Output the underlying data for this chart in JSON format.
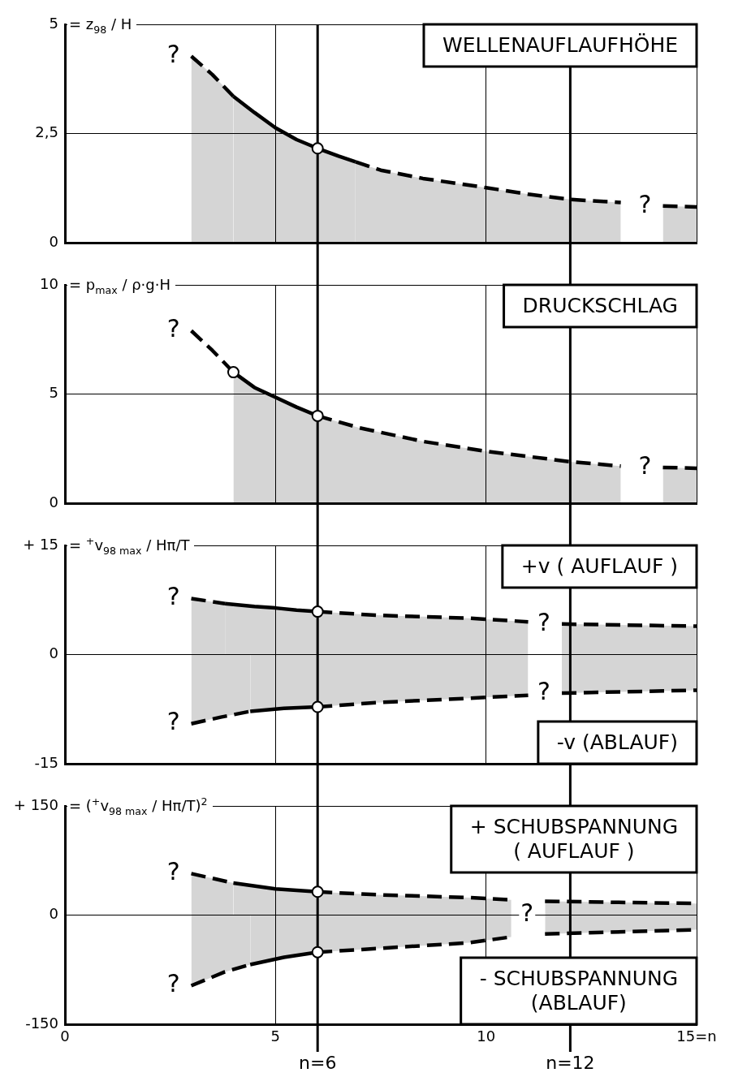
{
  "chart_data": [
    {
      "type": "area",
      "title": "WELLENAUFLAUFHÖHE",
      "ylabel": "= z$_{98}$ / H",
      "xlim": [
        0,
        15
      ],
      "xticks": [
        0,
        5,
        10,
        15
      ],
      "ylim": [
        0,
        5
      ],
      "yticks": [
        0,
        {
          "value": 2.5,
          "label": "2,5"
        },
        5
      ],
      "grid": true,
      "tick_labels": "y",
      "series": [
        {
          "color": "#000000",
          "line_style": "dashed",
          "x": [
            3,
            3.5,
            4
          ],
          "values": [
            4.27,
            3.85,
            3.35
          ]
        },
        {
          "color": "#000000",
          "line_style": "solid",
          "x": [
            4,
            4.5,
            5,
            5.5,
            6,
            6.5,
            6.9
          ],
          "values": [
            3.35,
            2.98,
            2.63,
            2.36,
            2.16,
            1.98,
            1.85
          ]
        },
        {
          "color": "#000000",
          "line_style": "dashed",
          "x": [
            6.9,
            7.5,
            8.5,
            10,
            11,
            12,
            13.2
          ],
          "values": [
            1.85,
            1.66,
            1.47,
            1.26,
            1.11,
            0.99,
            0.92
          ]
        },
        {
          "color": "#000000",
          "line_style": "dashed",
          "x": [
            14.2,
            15
          ],
          "values": [
            0.84,
            0.82
          ]
        },
        {
          "type": "scatter",
          "color": "#000000",
          "marker": "circle",
          "x": [
            6
          ],
          "values": [
            2.16
          ]
        }
      ],
      "annotations": [
        {
          "text": "?",
          "x": 3,
          "y": 4.27
        },
        {
          "text": "?",
          "x": 14.2,
          "y": 0.84
        }
      ],
      "ref_lines": [
        {
          "axis": "x",
          "value": 6
        },
        {
          "axis": "x",
          "value": 12
        }
      ]
    },
    {
      "type": "area",
      "title": "DRUCKSCHLAG",
      "ylabel": "= p$_{max}$ / ρ·g·H",
      "xlim": [
        0,
        15
      ],
      "xticks": [
        0,
        5,
        10,
        15
      ],
      "ylim": [
        0,
        10
      ],
      "yticks": [
        0,
        5,
        10
      ],
      "grid": true,
      "tick_labels": "y",
      "series": [
        {
          "type": "line",
          "color": "#000000",
          "line_style": "dashed",
          "x": [
            3,
            3.5,
            4
          ],
          "values": [
            7.9,
            7.0,
            6.0
          ]
        },
        {
          "color": "#000000",
          "line_style": "solid",
          "x": [
            4,
            4.5,
            5,
            5.5,
            6
          ],
          "values": [
            6.0,
            5.3,
            4.85,
            4.4,
            4.0
          ]
        },
        {
          "color": "#000000",
          "line_style": "dashed",
          "x": [
            6,
            7,
            8.5,
            10,
            12,
            13.2
          ],
          "values": [
            4.0,
            3.45,
            2.83,
            2.38,
            1.9,
            1.7
          ]
        },
        {
          "color": "#000000",
          "line_style": "dashed",
          "x": [
            14.2,
            15
          ],
          "values": [
            1.64,
            1.6
          ]
        },
        {
          "type": "scatter",
          "color": "#000000",
          "marker": "circle",
          "x": [
            4,
            6
          ],
          "values": [
            6.0,
            4.0
          ]
        }
      ],
      "annotations": [
        {
          "text": "?",
          "x": 3,
          "y": 7.9
        },
        {
          "text": "?",
          "x": 14.2,
          "y": 1.64
        }
      ],
      "ref_lines": [
        {
          "axis": "x",
          "value": 6
        },
        {
          "axis": "x",
          "value": 12
        }
      ]
    },
    {
      "type": "area",
      "ylabel": "= $^{+}$v$_{98 max}$ / Hπ/T",
      "xlim": [
        0,
        15
      ],
      "xticks": [
        0,
        5,
        10,
        15
      ],
      "ylim": [
        -15,
        15
      ],
      "yticks": [
        -15,
        0,
        {
          "value": 15,
          "label": "+ 15"
        }
      ],
      "grid": true,
      "tick_labels": "y",
      "series": [
        {
          "color": "#000000",
          "line_style": "dashed",
          "x": [
            3,
            3.8
          ],
          "values": [
            7.7,
            7.0
          ]
        },
        {
          "color": "#000000",
          "line_style": "solid",
          "x": [
            3.8,
            4.5,
            5,
            5.5,
            6
          ],
          "values": [
            7.0,
            6.6,
            6.4,
            6.1,
            5.9
          ]
        },
        {
          "color": "#000000",
          "line_style": "dashed",
          "x": [
            6,
            7.4,
            8.5,
            9.6,
            11
          ],
          "values": [
            5.9,
            5.4,
            5.2,
            5.0,
            4.5
          ]
        },
        {
          "color": "#000000",
          "line_style": "dashed",
          "x": [
            11.8,
            15
          ],
          "values": [
            4.2,
            3.9
          ]
        },
        {
          "color": "#000000",
          "line_style": "dashed",
          "x": [
            3,
            3.7,
            4.4
          ],
          "values": [
            -9.5,
            -8.6,
            -7.8
          ]
        },
        {
          "color": "#000000",
          "line_style": "solid",
          "x": [
            4.4,
            5.2,
            6
          ],
          "values": [
            -7.8,
            -7.4,
            -7.2
          ]
        },
        {
          "color": "#000000",
          "line_style": "dashed",
          "x": [
            6,
            7.4,
            8.5,
            9.6,
            11
          ],
          "values": [
            -7.2,
            -6.6,
            -6.3,
            -6.0,
            -5.6
          ]
        },
        {
          "color": "#000000",
          "line_style": "dashed",
          "x": [
            11.8,
            15
          ],
          "values": [
            -5.3,
            -4.9
          ]
        },
        {
          "type": "scatter",
          "color": "#000000",
          "marker": "circle",
          "x": [
            6,
            6
          ],
          "values": [
            5.9,
            -7.2
          ]
        }
      ],
      "annotations": [
        "+v ( AUFLAUF )",
        "-v (ABLAUF)",
        {
          "text": "?",
          "x": 3,
          "y": 7.7
        },
        {
          "text": "?",
          "x": 3,
          "y": -9.5
        },
        {
          "text": "?",
          "x": 11.8,
          "y": 4.2
        },
        {
          "text": "?",
          "x": 11.8,
          "y": -5.3
        }
      ],
      "ref_lines": [
        {
          "axis": "x",
          "value": 6
        },
        {
          "axis": "x",
          "value": 12
        }
      ]
    },
    {
      "type": "area",
      "ylabel": "= ($^{+}$v$_{98 max}$ / Hπ/T)$^{2}$",
      "xlim": [
        0,
        15
      ],
      "xticks": [
        0,
        5,
        10,
        {
          "value": 15,
          "label": "15=n"
        }
      ],
      "ylim": [
        -150,
        150
      ],
      "yticks": [
        -150,
        0,
        {
          "value": 150,
          "label": "+ 150"
        }
      ],
      "grid": true,
      "series": [
        {
          "color": "#000000",
          "line_style": "dashed",
          "x": [
            3,
            4
          ],
          "values": [
            57,
            44
          ]
        },
        {
          "color": "#000000",
          "line_style": "solid",
          "x": [
            4,
            5,
            6
          ],
          "values": [
            44,
            36,
            32
          ]
        },
        {
          "color": "#000000",
          "line_style": "dashed",
          "x": [
            6,
            7.4,
            9.6,
            10.6
          ],
          "values": [
            32,
            28,
            24,
            21
          ]
        },
        {
          "color": "#000000",
          "line_style": "dashed",
          "x": [
            11.4,
            15
          ],
          "values": [
            19,
            16
          ]
        },
        {
          "color": "#000000",
          "line_style": "dashed",
          "x": [
            3,
            3.8,
            4.4
          ],
          "values": [
            -97,
            -78,
            -68
          ]
        },
        {
          "color": "#000000",
          "line_style": "solid",
          "x": [
            4.4,
            5.2,
            6
          ],
          "values": [
            -68,
            -58,
            -51
          ]
        },
        {
          "color": "#000000",
          "line_style": "dashed",
          "x": [
            6,
            7.4,
            9.6,
            10.6
          ],
          "values": [
            -51,
            -46,
            -38,
            -30
          ]
        },
        {
          "color": "#000000",
          "line_style": "dashed",
          "x": [
            11.4,
            15
          ],
          "values": [
            -26,
            -20
          ]
        },
        {
          "type": "scatter",
          "color": "#000000",
          "marker": "circle",
          "x": [
            6,
            6
          ],
          "values": [
            32,
            -51
          ]
        }
      ],
      "annotations": [
        "+ SCHUBSPANNUNG\n( AUFLAUF )",
        "- SCHUBSPANNUNG\n(ABLAUF)",
        {
          "text": "?",
          "x": 3,
          "y": 57
        },
        {
          "text": "?",
          "x": 3,
          "y": -97
        },
        {
          "text": "?",
          "x": 11.4,
          "y": 0
        }
      ],
      "ref_lines": [
        {
          "axis": "x",
          "value": 6,
          "label": "n=6"
        },
        {
          "axis": "x",
          "value": 12,
          "label": "n=12"
        }
      ]
    }
  ]
}
